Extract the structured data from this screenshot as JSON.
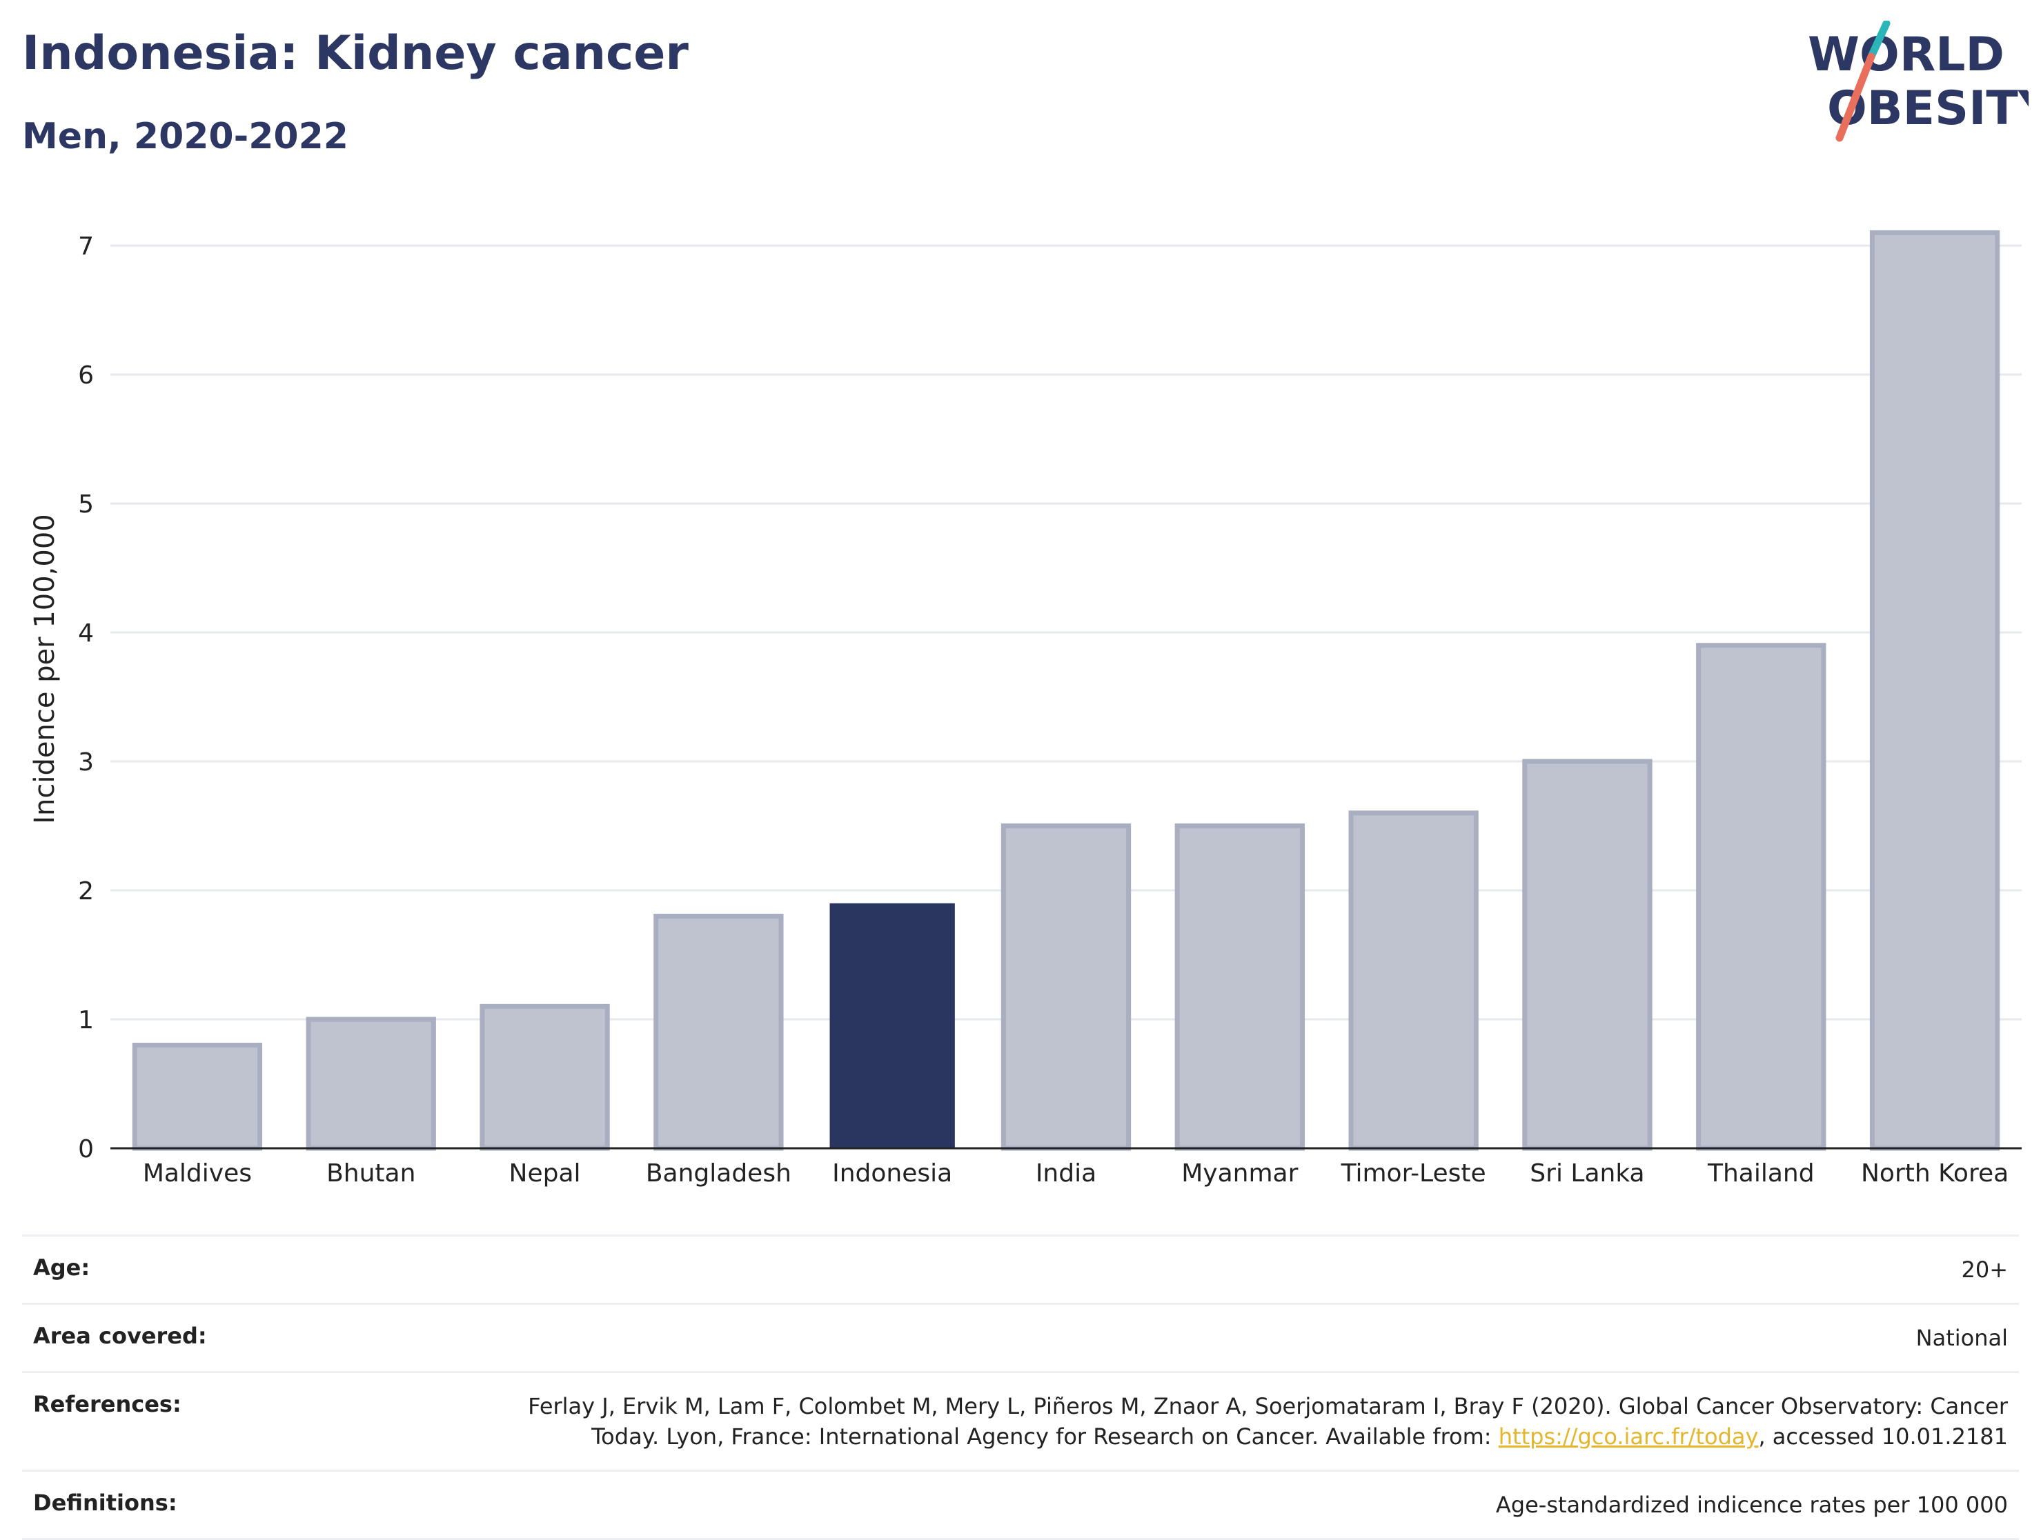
{
  "header": {
    "title": "Indonesia: Kidney cancer",
    "subtitle": "Men, 2020-2022",
    "logo_line1": "WORLD",
    "logo_line2": "OBESITY"
  },
  "colors": {
    "highlight": "#2a3560",
    "bar": "#bfc3d0",
    "bar_stroke": "#a9aec0",
    "grid": "#e6e8ec",
    "logo_teal": "#2bb5b8",
    "logo_coral": "#e86f5c"
  },
  "chart_data": {
    "type": "bar",
    "categories": [
      "Maldives",
      "Bhutan",
      "Nepal",
      "Bangladesh",
      "Indonesia",
      "India",
      "Myanmar",
      "Timor-Leste",
      "Sri Lanka",
      "Thailand",
      "North Korea"
    ],
    "values": [
      0.8,
      1.0,
      1.1,
      1.8,
      1.9,
      2.5,
      2.5,
      2.6,
      3.0,
      3.9,
      7.1
    ],
    "highlight": "Indonesia",
    "ylabel": "Incidence per 100,000",
    "xlabel": "",
    "ylim": [
      0,
      7.3
    ],
    "yticks": [
      0,
      1,
      2,
      3,
      4,
      5,
      6,
      7
    ],
    "grid": true
  },
  "meta": {
    "age_label": "Age:",
    "age_value": "20+",
    "area_label": "Area covered:",
    "area_value": "National",
    "references_label": "References:",
    "references_text_1": "Ferlay J, Ervik M, Lam F, Colombet M, Mery L, Piñeros M, Znaor A, Soerjomataram I, Bray F (2020). Global Cancer Observatory: Cancer",
    "references_text_2": "Today. Lyon, France: International Agency for Research on Cancer. Available from:",
    "references_link": "https://gco.iarc.fr/today",
    "references_text_3": ", accessed 10.01.2181",
    "definitions_label": "Definitions:",
    "definitions_value": "Age-standardized indicence rates per 100 000"
  }
}
